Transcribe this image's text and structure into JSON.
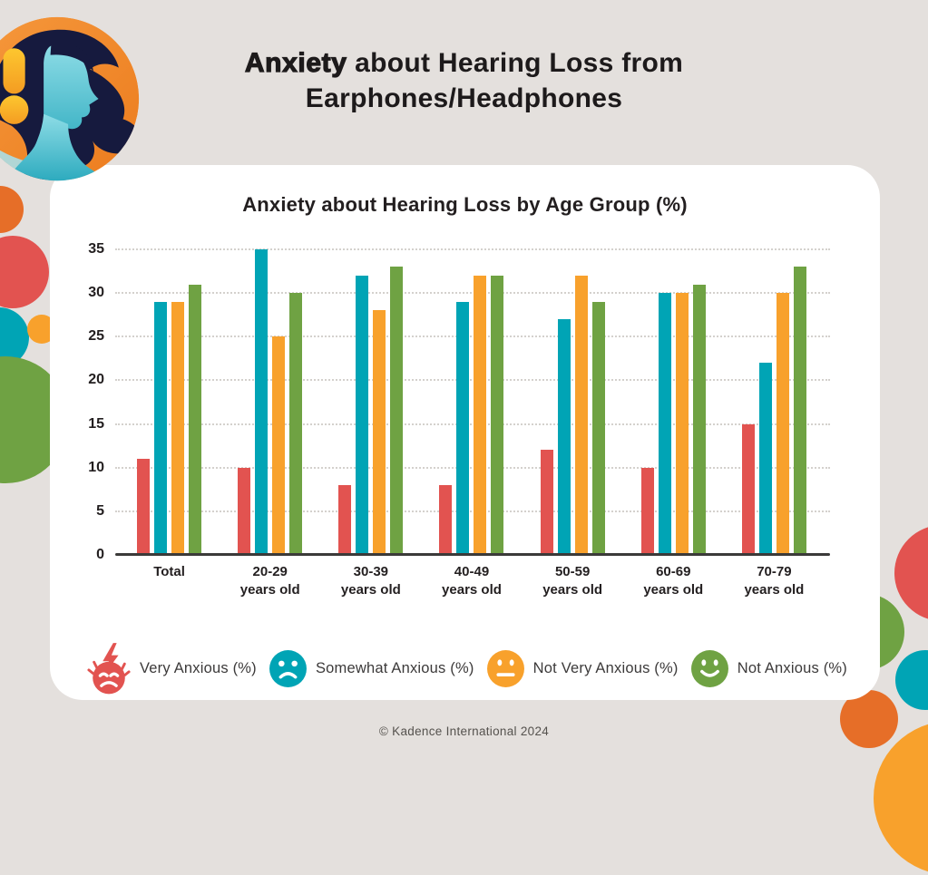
{
  "page": {
    "background_color": "#e4e0dd",
    "footer": "© Kadence International 2024"
  },
  "header": {
    "title_bold": "Anxiety",
    "title_rest": " about Hearing Loss from",
    "title_line2": "Earphones/Headphones"
  },
  "icons": {
    "logo": "woman-with-headphones-exclamation-illustration",
    "legend": [
      "angry-face-icon",
      "sad-face-icon",
      "neutral-face-icon",
      "smiley-face-icon"
    ]
  },
  "palette": {
    "red": "#e25350",
    "teal": "#00a4b5",
    "orange": "#f8a12c",
    "green": "#6fa243",
    "deep_orange": "#e66e28",
    "text_dark": "#231f20"
  },
  "legend": [
    {
      "label": "Very Anxious (%)",
      "icon": "angry-face-icon",
      "color": "#e25350"
    },
    {
      "label": "Somewhat Anxious (%)",
      "icon": "sad-face-icon",
      "color": "#00a4b5"
    },
    {
      "label": "Not Very Anxious (%)",
      "icon": "neutral-face-icon",
      "color": "#f8a12c"
    },
    {
      "label": "Not Anxious (%)",
      "icon": "smiley-face-icon",
      "color": "#6fa243"
    }
  ],
  "chart_data": {
    "type": "bar",
    "title": "Anxiety about Hearing Loss by Age Group (%)",
    "categories": [
      "Total",
      "20-29\nyears old",
      "30-39\nyears old",
      "40-49\nyears old",
      "50-59\nyears old",
      "60-69\nyears old",
      "70-79\nyears old"
    ],
    "series": [
      {
        "name": "Very Anxious (%)",
        "color": "#e25350",
        "values": [
          11,
          10,
          8,
          8,
          12,
          10,
          15
        ]
      },
      {
        "name": "Somewhat Anxious (%)",
        "color": "#00a4b5",
        "values": [
          29,
          35,
          32,
          29,
          27,
          30,
          22
        ]
      },
      {
        "name": "Not Very Anxious (%)",
        "color": "#f8a12c",
        "values": [
          29,
          25,
          28,
          32,
          32,
          30,
          30
        ]
      },
      {
        "name": "Not Anxious (%)",
        "color": "#6fa243",
        "values": [
          31,
          30,
          33,
          32,
          29,
          31,
          33
        ]
      }
    ],
    "xlabel": "",
    "ylabel": "",
    "ylim": [
      0,
      35
    ],
    "yticks": [
      0,
      5,
      10,
      15,
      20,
      25,
      30,
      35
    ],
    "grid": "dotted-horizontal",
    "legend_position": "bottom"
  }
}
